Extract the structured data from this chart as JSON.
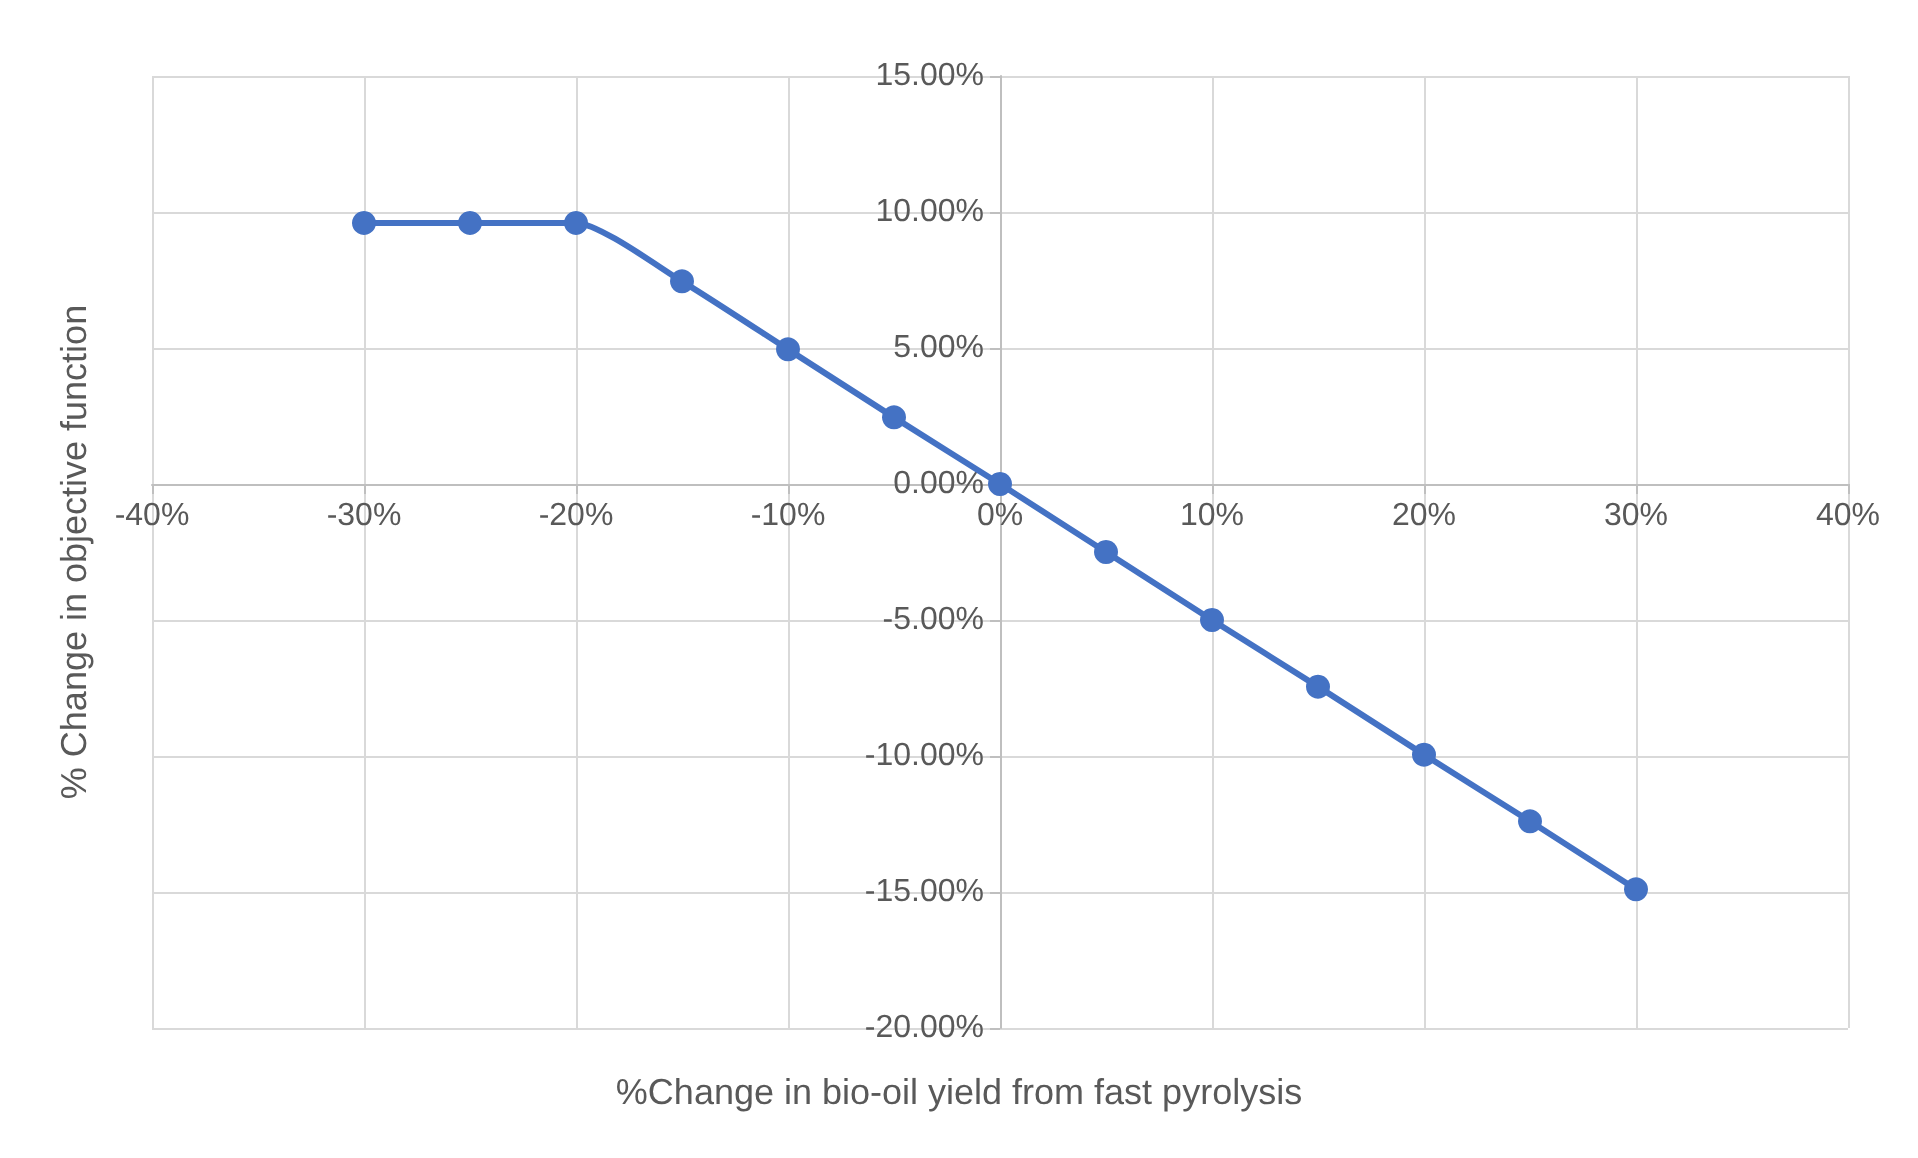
{
  "chart_data": {
    "type": "line",
    "xlabel": "%Change in bio-oil yield from fast pyrolysis",
    "ylabel": "% Change in objective function",
    "x": [
      -30,
      -25,
      -20,
      -15,
      -10,
      -5,
      0,
      5,
      10,
      15,
      20,
      25,
      30
    ],
    "series": [
      {
        "color": "#4472c4",
        "values": [
          9.6,
          9.6,
          9.6,
          7.45,
          4.95,
          2.45,
          0,
          -2.5,
          -5,
          -7.45,
          -9.95,
          -12.4,
          -14.9
        ]
      }
    ],
    "xlim": [
      -40,
      40
    ],
    "xticks": [
      {
        "value": -40,
        "label": "-40%"
      },
      {
        "value": -30,
        "label": "-30%"
      },
      {
        "value": -20,
        "label": "-20%"
      },
      {
        "value": -10,
        "label": "-10%"
      },
      {
        "value": 0,
        "label": "0%"
      },
      {
        "value": 10,
        "label": "10%"
      },
      {
        "value": 20,
        "label": "20%"
      },
      {
        "value": 30,
        "label": "30%"
      },
      {
        "value": 40,
        "label": "40%"
      }
    ],
    "ylim": [
      -20,
      15
    ],
    "yticks": [
      {
        "value": -20,
        "label": "-20.00%"
      },
      {
        "value": -15,
        "label": "-15.00%"
      },
      {
        "value": -10,
        "label": "-10.00%"
      },
      {
        "value": -5,
        "label": "-5.00%"
      },
      {
        "value": 0,
        "label": "0.00%"
      },
      {
        "value": 5,
        "label": "5.00%"
      },
      {
        "value": 10,
        "label": "10.00%"
      },
      {
        "value": 15,
        "label": "15.00%"
      }
    ],
    "grid": true,
    "marker": "circle",
    "line_style": "solid"
  }
}
